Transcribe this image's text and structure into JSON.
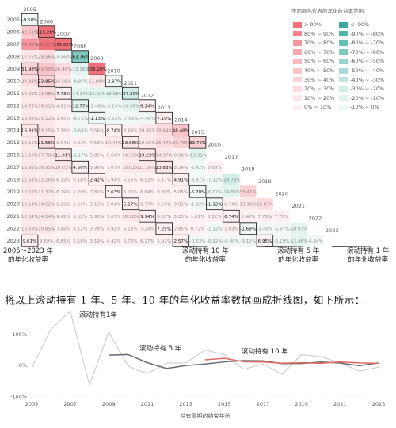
{
  "legend": {
    "title": "不同颜色代表的年化收益率范围：",
    "pos": [
      {
        "label": "> 90%",
        "color": "#f2707a"
      },
      {
        "label": "80% ~ 90%",
        "color": "#f4838b"
      },
      {
        "label": "70% ~ 80%",
        "color": "#f5959c"
      },
      {
        "label": "60% ~ 70%",
        "color": "#f7a8ae"
      },
      {
        "label": "50% ~ 60%",
        "color": "#f9b8bd"
      },
      {
        "label": "40% ~ 50%",
        "color": "#fac5c9"
      },
      {
        "label": "30% ~ 40%",
        "color": "#fbd1d4"
      },
      {
        "label": "20% ~ 30%",
        "color": "#fcdcdf"
      },
      {
        "label": "10% ~ 20%",
        "color": "#fde6e8"
      },
      {
        "label": "0% ~ 10%",
        "color": "#fef0f1"
      }
    ],
    "neg": [
      {
        "label": "< -90%",
        "color": "#3aa89a"
      },
      {
        "label": "-90% ~ -80%",
        "color": "#52b3a6"
      },
      {
        "label": "-80% ~ -70%",
        "color": "#69beb2"
      },
      {
        "label": "-70% ~ -60%",
        "color": "#80c8be"
      },
      {
        "label": "-60% ~ -50%",
        "color": "#97d2ca"
      },
      {
        "label": "-50% ~ -40%",
        "color": "#acdbd5"
      },
      {
        "label": "-40% ~ -30%",
        "color": "#c0e4df"
      },
      {
        "label": "-30% ~ -20%",
        "color": "#d2ece8"
      },
      {
        "label": "-20% ~ -10%",
        "color": "#e2f3f0"
      },
      {
        "label": "-10% ~ 0%",
        "color": "#eff8f7"
      }
    ]
  },
  "callouts": {
    "diag": "2005～2023 年\n的年化收益率",
    "ten": "滚动持有 10 年\n的年化收益率",
    "five": "滚动持有 5 年\n的年化收益率",
    "one": "滚动持有 1 年\n的年化收益率"
  },
  "sentence": "将以上滚动持有 1 年、5 年、10 年的年化收益率数据画成折线图，如下所示：",
  "chart_data": [
    {
      "type": "heatmap",
      "years": [
        "2005",
        "2006",
        "2007",
        "2008",
        "2009",
        "2010",
        "2011",
        "2012",
        "2013",
        "2014",
        "2015",
        "2016",
        "2017",
        "2018",
        "2019",
        "2020",
        "2021",
        "2022",
        "2023"
      ],
      "matrix": [
        [
          -9.58
        ],
        [
          42.51,
          115.28
        ],
        [
          74.45,
          162.87,
          172.82
        ],
        [
          17.76,
          28.56,
          -6.66,
          -63.76
        ],
        [
          31.98,
          49.5,
          26.49,
          -13.16,
          106.2
        ],
        [
          24.92,
          33.85,
          16.05,
          -8.97,
          12.98,
          -2.97
        ],
        [
          14.99,
          21.98,
          7.73,
          -14.14,
          -10.82,
          -15.58,
          -27.29
        ],
        [
          14.75,
          16.01,
          4.62,
          -10.77,
          -3.48,
          -3.14,
          -14.36,
          6.24
        ],
        [
          13.43,
          15.12,
          3.45,
          -8.71,
          -1.13,
          -2.53,
          -7.05,
          -4.46,
          7.1
        ],
        [
          16.81,
          19.15,
          7.58,
          -3.64,
          3.56,
          8.74,
          8.64,
          19.45,
          28.44,
          48.48
        ],
        [
          16.15,
          21.56,
          9.94,
          0.81,
          7.53,
          10.44,
          13.68,
          19.36,
          25.47,
          33.76,
          33.76
        ],
        [
          15.1,
          17.78,
          11.01,
          -1.17,
          5.85,
          6.64,
          14.39,
          19.23,
          14.37,
          8.08,
          -13.31
        ],
        [
          13.96,
          16.95,
          10.03,
          4.5,
          5.96,
          7.07,
          10.02,
          11.26,
          13.83,
          8.24,
          -6.42,
          3.68
        ],
        [
          11.54,
          12.2,
          6.13,
          0.18,
          2.42,
          3.94,
          5.25,
          6.52,
          5.17,
          4.91,
          -3.81,
          -7.32,
          -28.79
        ],
        [
          10.61,
          11.32,
          6.29,
          1.7,
          7.82,
          3.63,
          5.25,
          6.64,
          3.39,
          5.05,
          -5.7,
          -6.02,
          -14.85,
          33.41
        ],
        [
          12.14,
          14.52,
          9.29,
          1.29,
          3.13,
          5.84,
          5.17,
          8.77,
          9.66,
          9.81,
          -1.02,
          -1.12,
          0.74,
          13.1,
          26.87
        ],
        [
          12.34,
          14.14,
          9.42,
          5.02,
          5.93,
          7.07,
          10.18,
          9.94,
          9.37,
          5.25,
          1.61,
          6.12,
          6.74,
          5.94,
          7.7,
          7.7
        ],
        [
          10.69,
          10.85,
          7.88,
          3.12,
          3.78,
          4.92,
          6.13,
          7.24,
          7.25,
          2.85,
          0.72,
          -1.12,
          1.03,
          -1.69,
          -1.46,
          -5.97,
          -18.93
        ],
        [
          9.61,
          9.69,
          6.65,
          2.18,
          3.19,
          4.42,
          5.73,
          6.27,
          5.92,
          2.57,
          -0.63,
          -0.92,
          -0.8,
          -3.12,
          6.95,
          -6.19,
          -12.46,
          -6.34
        ]
      ]
    },
    {
      "type": "line",
      "xlabel": "持有周期的结束年份",
      "ylim": [
        -100,
        200
      ],
      "yticks": [
        "200%",
        "100%",
        "0%",
        "-100%"
      ],
      "xticks": [
        "2005",
        "2007",
        "2009",
        "2011",
        "2013",
        "2015",
        "2017",
        "2019",
        "2021",
        "2023"
      ],
      "series": [
        {
          "name": "滚动持有1年",
          "color": "#cfcfcf",
          "x": [
            2005,
            2006,
            2007,
            2008,
            2009,
            2010,
            2011,
            2012,
            2013,
            2014,
            2015,
            2016,
            2017,
            2018,
            2019,
            2020,
            2021,
            2022,
            2023
          ],
          "y": [
            -9.58,
            115.28,
            172.82,
            -63.76,
            106.2,
            -2.97,
            -27.29,
            6.24,
            7.1,
            48.48,
            33.76,
            -13.31,
            3.68,
            -28.79,
            33.41,
            26.87,
            7.7,
            -18.93,
            -6.34
          ]
        },
        {
          "name": "滚动持有 5 年",
          "color": "#666a78",
          "x": [
            2009,
            2010,
            2011,
            2012,
            2013,
            2014,
            2015,
            2016,
            2017,
            2018,
            2019,
            2020,
            2021,
            2022,
            2023
          ],
          "y": [
            31.98,
            33.85,
            7.73,
            -10.77,
            -1.13,
            3.56,
            10.44,
            14.39,
            13.83,
            4.91,
            5.05,
            9.81,
            6.74,
            -1.69,
            6.95
          ]
        },
        {
          "name": "滚动持有 10 年",
          "color": "#e06a5e",
          "x": [
            2014,
            2015,
            2016,
            2017,
            2018,
            2019,
            2020,
            2021,
            2022,
            2023
          ],
          "y": [
            16.81,
            21.56,
            11.01,
            10.03,
            6.13,
            7.82,
            5.84,
            10.18,
            7.24,
            5.92
          ]
        }
      ]
    }
  ]
}
